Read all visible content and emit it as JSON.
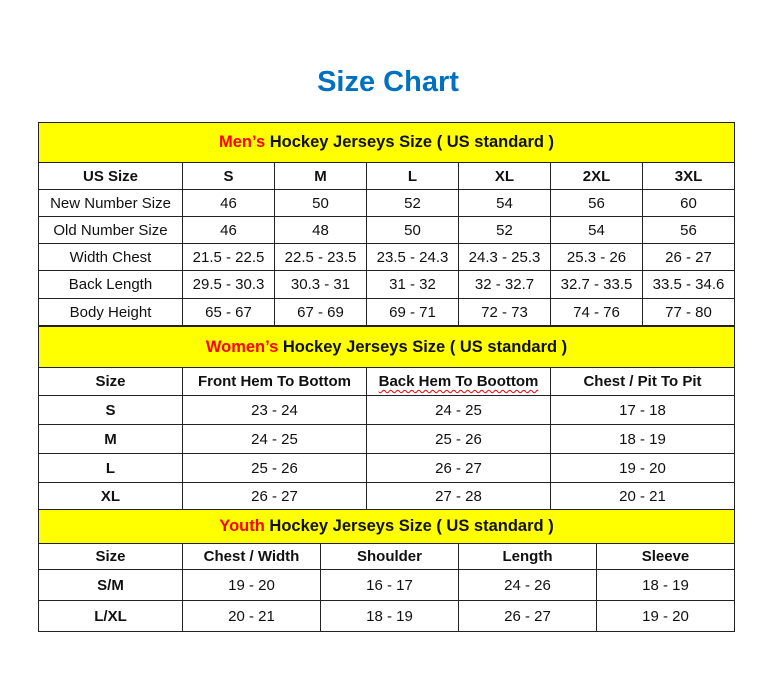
{
  "title": "Size Chart",
  "colors": {
    "title": "#0070c0",
    "header_bg": "#ffff00",
    "highlight": "#ff0000"
  },
  "mens": {
    "header_highlight": "Men’s",
    "header_rest": " Hockey Jerseys Size ( US standard )",
    "columns": [
      "US Size",
      "S",
      "M",
      "L",
      "XL",
      "2XL",
      "3XL"
    ],
    "rows": [
      [
        "New Number Size",
        "46",
        "50",
        "52",
        "54",
        "56",
        "60"
      ],
      [
        "Old Number Size",
        "46",
        "48",
        "50",
        "52",
        "54",
        "56"
      ],
      [
        "Width Chest",
        "21.5 - 22.5",
        "22.5 - 23.5",
        "23.5 - 24.3",
        "24.3 - 25.3",
        "25.3 - 26",
        "26 - 27"
      ],
      [
        "Back Length",
        "29.5 - 30.3",
        "30.3 - 31",
        "31 - 32",
        "32 - 32.7",
        "32.7 - 33.5",
        "33.5 - 34.6"
      ],
      [
        "Body Height",
        "65 - 67",
        "67 - 69",
        "69 - 71",
        "72 - 73",
        "74 - 76",
        "77 - 80"
      ]
    ]
  },
  "womens": {
    "header_highlight": "Women’s",
    "header_rest": " Hockey Jerseys Size ( US standard )",
    "columns": [
      "Size",
      "Front Hem To Bottom",
      "Back Hem To Boottom",
      "Chest / Pit To Pit"
    ],
    "rows": [
      [
        "S",
        "23 - 24",
        "24 - 25",
        "17 - 18"
      ],
      [
        "M",
        "24 - 25",
        "25 - 26",
        "18 - 19"
      ],
      [
        "L",
        "25 - 26",
        "26 - 27",
        "19 - 20"
      ],
      [
        "XL",
        "26 - 27",
        "27 - 28",
        "20 - 21"
      ]
    ]
  },
  "youth": {
    "header_highlight": "Youth",
    "header_rest": " Hockey Jerseys Size ( US standard )",
    "columns": [
      "Size",
      "Chest / Width",
      "Shoulder",
      "Length",
      "Sleeve"
    ],
    "rows": [
      [
        "S/M",
        "19 - 20",
        "16 - 17",
        "24 - 26",
        "18 - 19"
      ],
      [
        "L/XL",
        "20 - 21",
        "18 - 19",
        "26 - 27",
        "19 - 20"
      ]
    ]
  }
}
